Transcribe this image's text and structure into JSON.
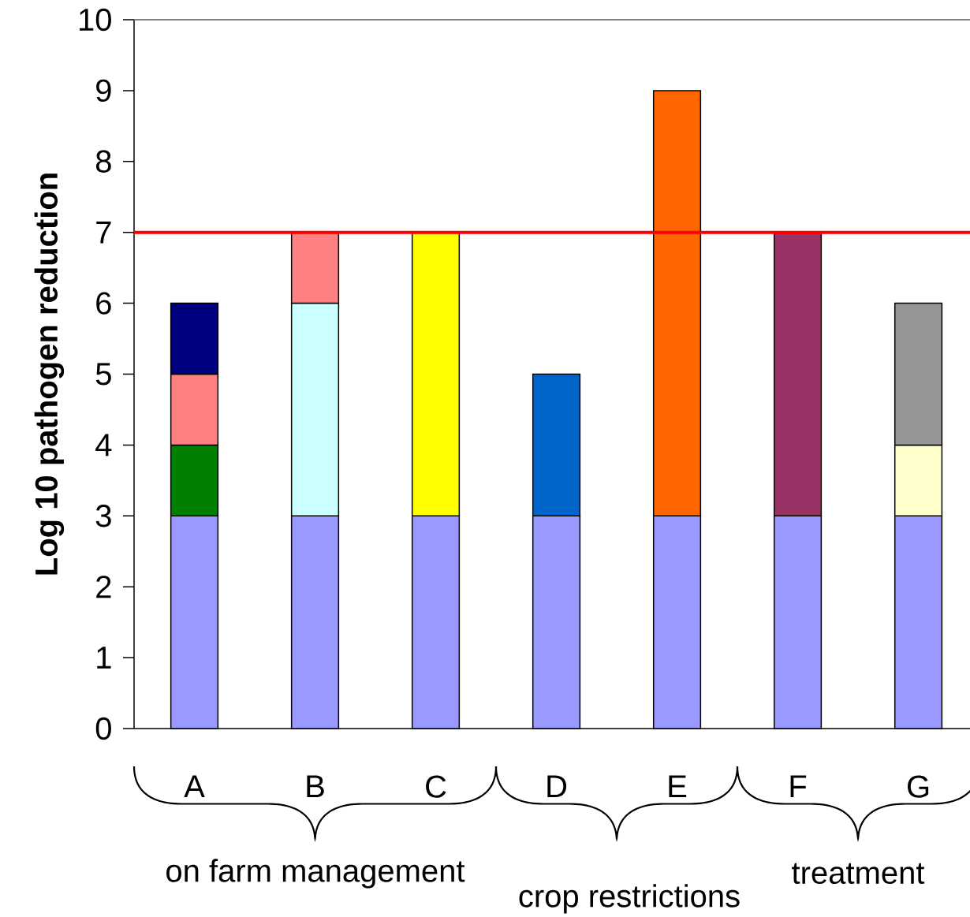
{
  "chart_data": {
    "type": "bar",
    "stacked": true,
    "ylabel": "Log 10 pathogen reduction",
    "categories": [
      "A",
      "B",
      "C",
      "D",
      "E",
      "F",
      "G"
    ],
    "series": [
      {
        "color": "#9999ff",
        "values": [
          3,
          3,
          3,
          3,
          3,
          3,
          3
        ]
      },
      {
        "colors": [
          "#008000",
          "#ccffff",
          "#ffff00",
          "#0066cc",
          "#ff6600",
          "#993366",
          "#ffffcc"
        ],
        "values": [
          1,
          3,
          4,
          2,
          6,
          4,
          1
        ]
      },
      {
        "colors": [
          "#ff8080",
          "#ff8080",
          null,
          null,
          null,
          null,
          "#969696"
        ],
        "values": [
          1,
          1,
          null,
          null,
          null,
          null,
          2
        ]
      },
      {
        "colors": [
          "#000080",
          null,
          null,
          null,
          null,
          null,
          null
        ],
        "values": [
          1,
          null,
          null,
          null,
          null,
          null,
          null
        ]
      }
    ],
    "ylim": [
      0,
      10
    ],
    "yticks": [
      0,
      1,
      2,
      3,
      4,
      5,
      6,
      7,
      8,
      9,
      10
    ],
    "ref_lines": [
      {
        "axis": "y",
        "value": 7,
        "color": "#ff0000"
      }
    ],
    "annotations": [
      "on farm management",
      "crop restrictions",
      "treatment"
    ]
  }
}
